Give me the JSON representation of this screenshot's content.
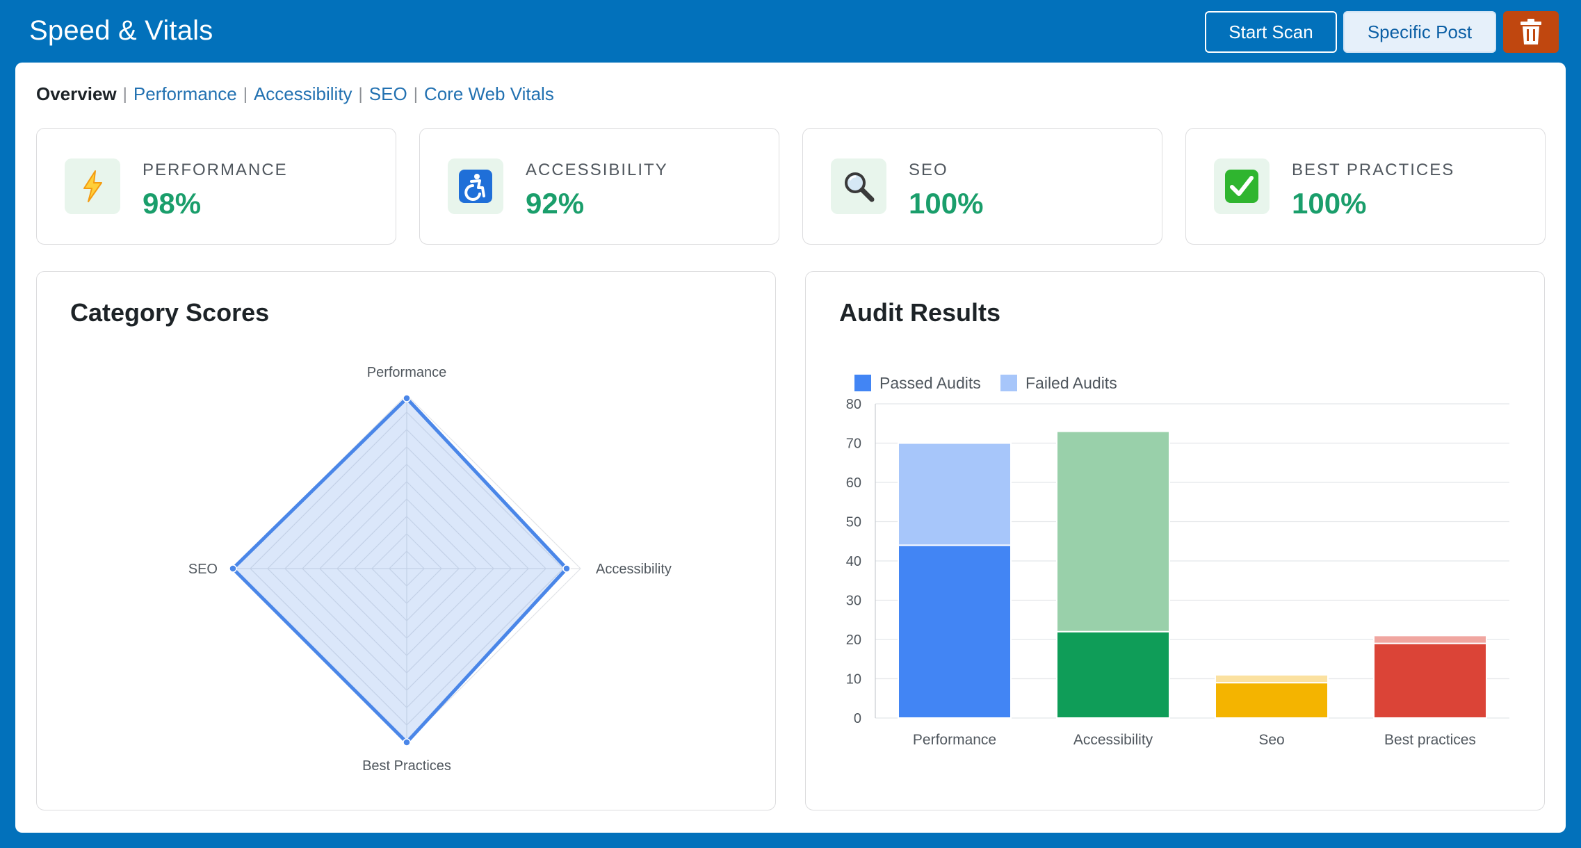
{
  "header": {
    "title": "Speed & Vitals",
    "start_scan_label": "Start Scan",
    "specific_post_label": "Specific Post",
    "delete_icon": "trash-icon"
  },
  "nav": {
    "current": "Overview",
    "links": [
      "Performance",
      "Accessibility",
      "SEO",
      "Core Web Vitals"
    ]
  },
  "score_cards": [
    {
      "label": "PERFORMANCE",
      "value": "98%",
      "icon": "lightning-icon"
    },
    {
      "label": "ACCESSIBILITY",
      "value": "92%",
      "icon": "accessibility-icon"
    },
    {
      "label": "SEO",
      "value": "100%",
      "icon": "magnifier-icon"
    },
    {
      "label": "BEST PRACTICES",
      "value": "100%",
      "icon": "checkmark-icon"
    }
  ],
  "colors": {
    "header_bg": "#0271bb",
    "score_green": "#1a9e6b",
    "radar_line": "#4a86e8",
    "perf_passed": "#4285f4",
    "perf_failed": "#a7c6fa",
    "acc_passed": "#0f9d58",
    "acc_failed": "#99d0aa",
    "seo_passed": "#f4b400",
    "seo_failed": "#fbe1a0",
    "bp_passed": "#db4437",
    "bp_failed": "#f0a6a0"
  },
  "chart_data": [
    {
      "type": "radar",
      "title": "Category Scores",
      "categories": [
        "Performance",
        "Accessibility",
        "Best Practices",
        "SEO"
      ],
      "values": [
        98,
        92,
        100,
        100
      ],
      "rlim": [
        0,
        100
      ],
      "grid": true
    },
    {
      "type": "bar",
      "stacked": true,
      "title": "Audit Results",
      "categories": [
        "Performance",
        "Accessibility",
        "Seo",
        "Best practices"
      ],
      "series": [
        {
          "name": "Passed Audits",
          "values": [
            44,
            22,
            9,
            19
          ]
        },
        {
          "name": "Failed Audits",
          "values": [
            26,
            51,
            2,
            2
          ]
        }
      ],
      "ylim": [
        0,
        80
      ],
      "yticks": [
        0,
        10,
        20,
        30,
        40,
        50,
        60,
        70,
        80
      ],
      "legend": "top-left",
      "grid": true
    }
  ]
}
